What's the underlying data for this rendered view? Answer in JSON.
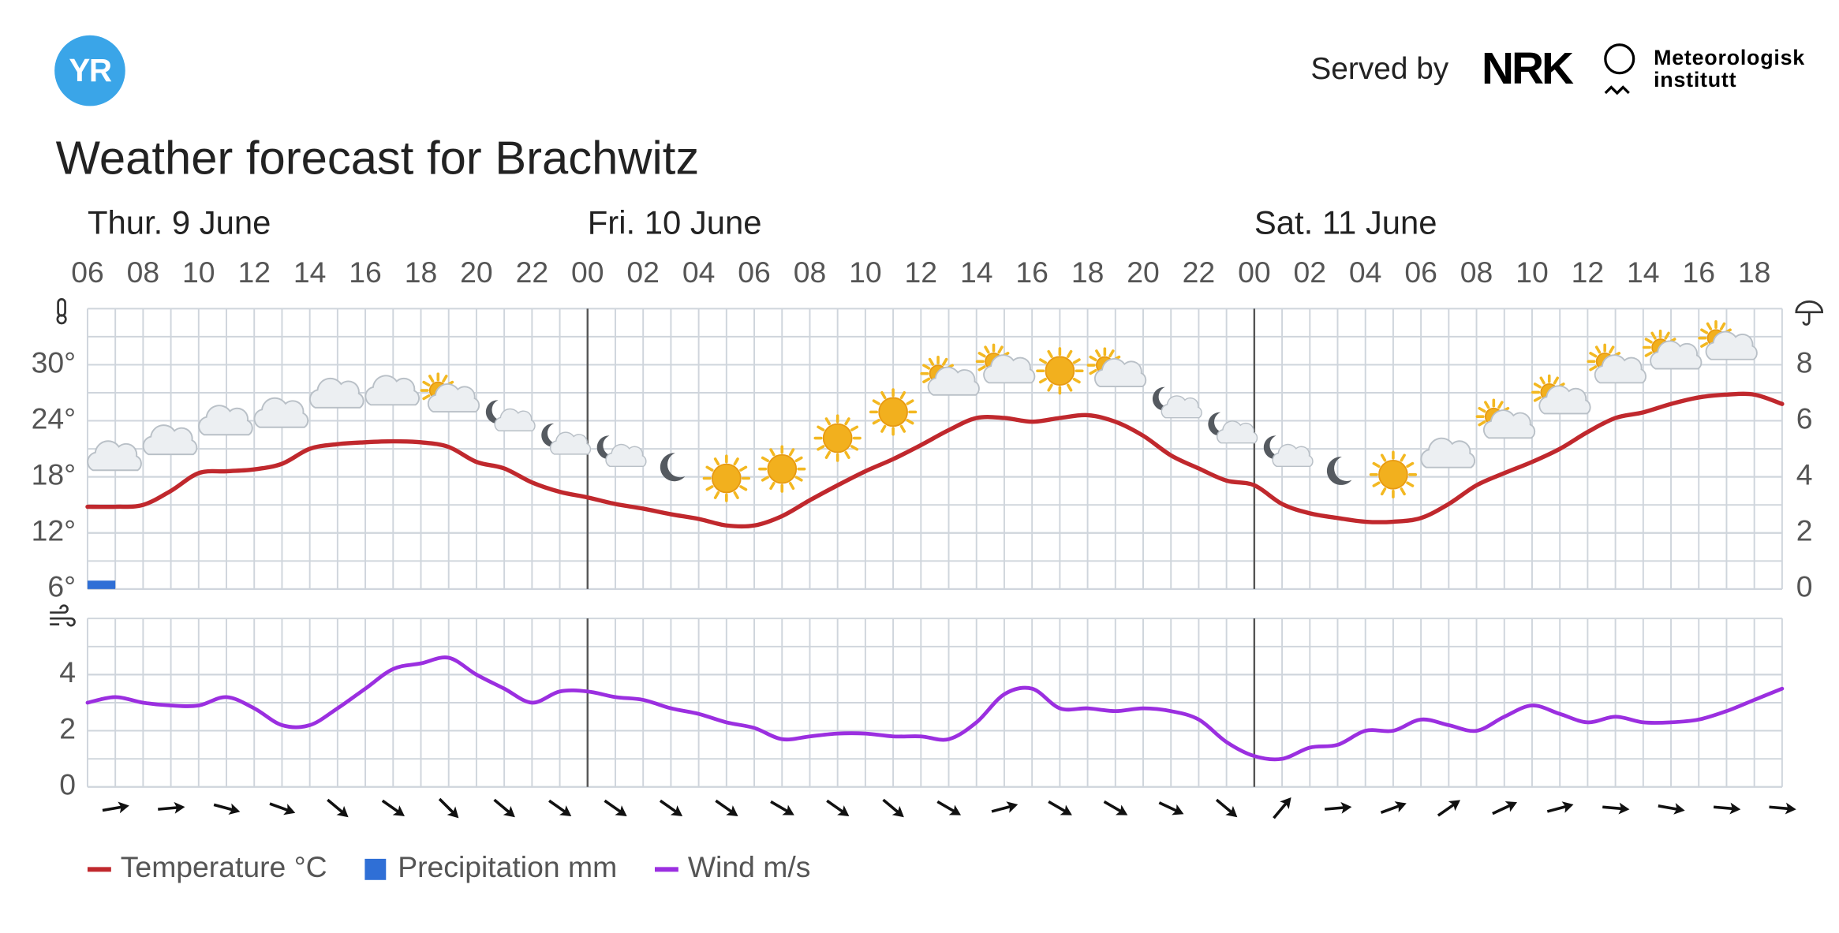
{
  "header": {
    "logo": "YR",
    "served_by": "Served by",
    "nrk": "NRK",
    "met_line1": "Meteorologisk",
    "met_line2": "institutt"
  },
  "chart_data": [
    {
      "type": "line",
      "title": "Weather forecast for Brachwitz",
      "days": [
        "Thur. 9 June",
        "Fri. 10 June",
        "Sat. 11 June"
      ],
      "categories": [
        "06",
        null,
        "08",
        null,
        "10",
        null,
        "12",
        null,
        "14",
        null,
        "16",
        null,
        "18",
        null,
        "20",
        null,
        "22",
        null,
        "00",
        null,
        "02",
        null,
        "04",
        null,
        "06",
        null,
        "08",
        null,
        "10",
        null,
        "12",
        null,
        "14",
        null,
        "16",
        null,
        "18",
        null,
        "20",
        null,
        "22",
        null,
        "00",
        null,
        "02",
        null,
        "04",
        null,
        "06",
        null,
        "08",
        null,
        "10",
        null,
        "12",
        null,
        "14",
        null,
        "16",
        null,
        "18",
        null
      ],
      "series": [
        {
          "name": "Temperature °C",
          "color": "#c0282d",
          "type": "line",
          "values": [
            14.8,
            14.8,
            15.0,
            16.5,
            18.4,
            18.6,
            18.8,
            19.4,
            21.0,
            21.5,
            21.7,
            21.8,
            21.7,
            21.2,
            19.6,
            18.9,
            17.4,
            16.4,
            15.8,
            15.1,
            14.6,
            14.0,
            13.5,
            12.8,
            12.8,
            13.8,
            15.5,
            17.1,
            18.6,
            19.9,
            21.4,
            23.0,
            24.3,
            24.3,
            23.9,
            24.3,
            24.6,
            23.9,
            22.4,
            20.3,
            18.9,
            17.6,
            17.1,
            15.1,
            14.1,
            13.6,
            13.2,
            13.2,
            13.6,
            15.1,
            17.1,
            18.4,
            19.6,
            21.0,
            22.8,
            24.3,
            24.9,
            25.8,
            26.5,
            26.8,
            26.8,
            25.8
          ]
        },
        {
          "name": "Precipitation mm",
          "color": "#2f6fd6",
          "type": "bar",
          "axis": "y2",
          "values": [
            0.3,
            0,
            0,
            0,
            0,
            0,
            0,
            0,
            0,
            0,
            0,
            0,
            0,
            0,
            0,
            0,
            0,
            0,
            0,
            0,
            0,
            0,
            0,
            0,
            0,
            0,
            0,
            0,
            0,
            0,
            0,
            0,
            0,
            0,
            0,
            0,
            0,
            0,
            0,
            0,
            0,
            0,
            0,
            0,
            0,
            0,
            0,
            0,
            0,
            0,
            0,
            0,
            0,
            0,
            0,
            0,
            0,
            0,
            0,
            0,
            0,
            0
          ]
        }
      ],
      "ylim": [
        6,
        36
      ],
      "yticks": [
        {
          "value": 6,
          "label": "6°"
        },
        {
          "value": 12,
          "label": "12°"
        },
        {
          "value": 18,
          "label": "18°"
        },
        {
          "value": 24,
          "label": "24°"
        },
        {
          "value": 30,
          "label": "30°"
        }
      ],
      "y2lim": [
        0,
        10
      ],
      "y2ticks": [
        0,
        2,
        4,
        6,
        8
      ],
      "grid": true,
      "weather_symbols": [
        "cloudy",
        "cloudy",
        "cloudy",
        "cloudy",
        "cloudy",
        "cloudy",
        "fair_day",
        "fair_night",
        "fair_night",
        "fair_night",
        "clearsky_night",
        "clearsky_day",
        "clearsky_day",
        "clearsky_day",
        "clearsky_day",
        "fair_day",
        "fair_day",
        "clearsky_day",
        "fair_day",
        "fair_night",
        "fair_night",
        "fair_night",
        "clearsky_night",
        "clearsky_day",
        "cloudy",
        "fair_day",
        "fair_day",
        "fair_day",
        "fair_day",
        "fair_day"
      ]
    },
    {
      "type": "line",
      "series": [
        {
          "name": "Wind m/s",
          "color": "#9b2fe0",
          "type": "line",
          "values": [
            3.0,
            3.2,
            3.0,
            2.9,
            2.9,
            3.2,
            2.8,
            2.2,
            2.2,
            2.8,
            3.5,
            4.2,
            4.4,
            4.6,
            4.0,
            3.5,
            3.0,
            3.4,
            3.4,
            3.2,
            3.1,
            2.8,
            2.6,
            2.3,
            2.1,
            1.7,
            1.8,
            1.9,
            1.9,
            1.8,
            1.8,
            1.7,
            2.3,
            3.3,
            3.5,
            2.8,
            2.8,
            2.7,
            2.8,
            2.7,
            2.4,
            1.6,
            1.1,
            1.0,
            1.4,
            1.5,
            2.0,
            2.0,
            2.4,
            2.2,
            2.0,
            2.5,
            2.9,
            2.6,
            2.3,
            2.5,
            2.3,
            2.3,
            2.4,
            2.7,
            3.1,
            3.5
          ]
        }
      ],
      "ylim": [
        0,
        6
      ],
      "yticks": [
        0,
        2,
        4
      ],
      "grid": true,
      "wind_direction": [
        80,
        85,
        105,
        110,
        130,
        125,
        135,
        130,
        125,
        125,
        125,
        125,
        120,
        125,
        130,
        120,
        75,
        120,
        120,
        115,
        130,
        40,
        85,
        70,
        55,
        65,
        75,
        95,
        100,
        95,
        95
      ]
    }
  ]
}
